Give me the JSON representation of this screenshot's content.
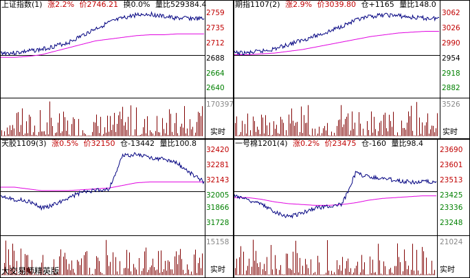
{
  "panels": [
    {
      "name": "上证指数(1)",
      "change": "涨2.2%",
      "price": "价2746.21",
      "extra": "换0.0%",
      "ratio": "量比529384.4",
      "price_axis": [
        "2759",
        "2735",
        "2712",
        "2688",
        "2664",
        "2640"
      ],
      "volume_axis": "170397",
      "volume_label": "实时"
    },
    {
      "name": "期指1107(2)",
      "change": "涨2.9%",
      "price": "价3039.80",
      "extra": "仓+1165",
      "ratio": "量比148.0",
      "price_axis": [
        "3062",
        "3026",
        "2990",
        "2954",
        "2918",
        "2882"
      ],
      "volume_axis": "3526",
      "volume_label": "实时"
    },
    {
      "name": "天胶1109(3)",
      "change": "涨0.5%",
      "price": "价32150",
      "extra": "仓-13442",
      "ratio": "量比100.8",
      "price_axis": [
        "32420",
        "32281",
        "32143",
        "32005",
        "31866",
        "31728"
      ],
      "volume_axis": "15158",
      "volume_label": "实时"
    },
    {
      "name": "一号棉1201(4)",
      "change": "涨0.2%",
      "price": "价23475",
      "extra": "仓-160",
      "ratio": "量比98.4",
      "price_axis": [
        "23690",
        "23601",
        "23513",
        "23425",
        "23336",
        "23248"
      ],
      "volume_axis": "21024",
      "volume_label": "实时"
    }
  ],
  "watermark": "大交易师精英版",
  "colors": {
    "price_line": "#000080",
    "avg_line": "#e000e0",
    "volume_bar": "#800000",
    "axis_red": "#c00000",
    "axis_green": "#008000",
    "grid": "#000000"
  }
}
